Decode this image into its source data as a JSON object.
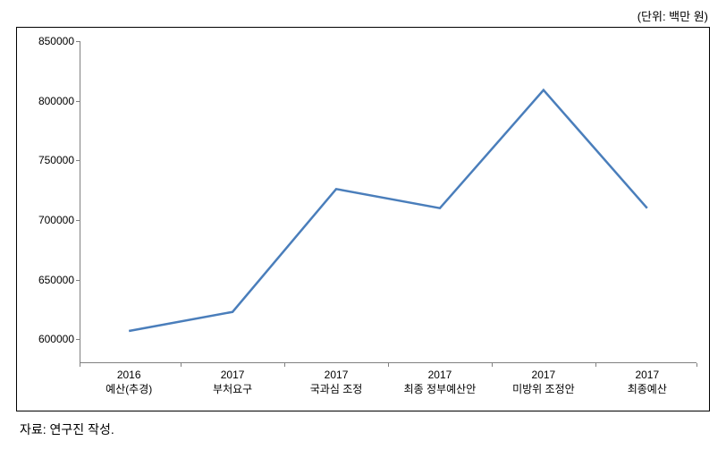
{
  "unit_label": "(단위: 백만 원)",
  "source_label": "자료: 연구진 작성.",
  "chart": {
    "type": "line",
    "background_color": "#ffffff",
    "border_color": "#000000",
    "axis_color": "#808080",
    "line_color": "#4a7ebb",
    "line_width": 2.5,
    "text_color": "#000000",
    "tick_fontsize": 12,
    "ylim": [
      580000,
      850000
    ],
    "yticks": [
      600000,
      650000,
      700000,
      750000,
      800000,
      850000
    ],
    "ytick_labels": [
      "600000",
      "650000",
      "700000",
      "750000",
      "800000",
      "850000"
    ],
    "categories": [
      {
        "year": "2016",
        "stage": "예산(추경)"
      },
      {
        "year": "2017",
        "stage": "부처요구"
      },
      {
        "year": "2017",
        "stage": "국과심 조정"
      },
      {
        "year": "2017",
        "stage": "최종 정부예산안"
      },
      {
        "year": "2017",
        "stage": "미방위 조정안"
      },
      {
        "year": "2017",
        "stage": "최종예산"
      }
    ],
    "values": [
      607000,
      623000,
      726000,
      710000,
      809000,
      710000
    ]
  }
}
